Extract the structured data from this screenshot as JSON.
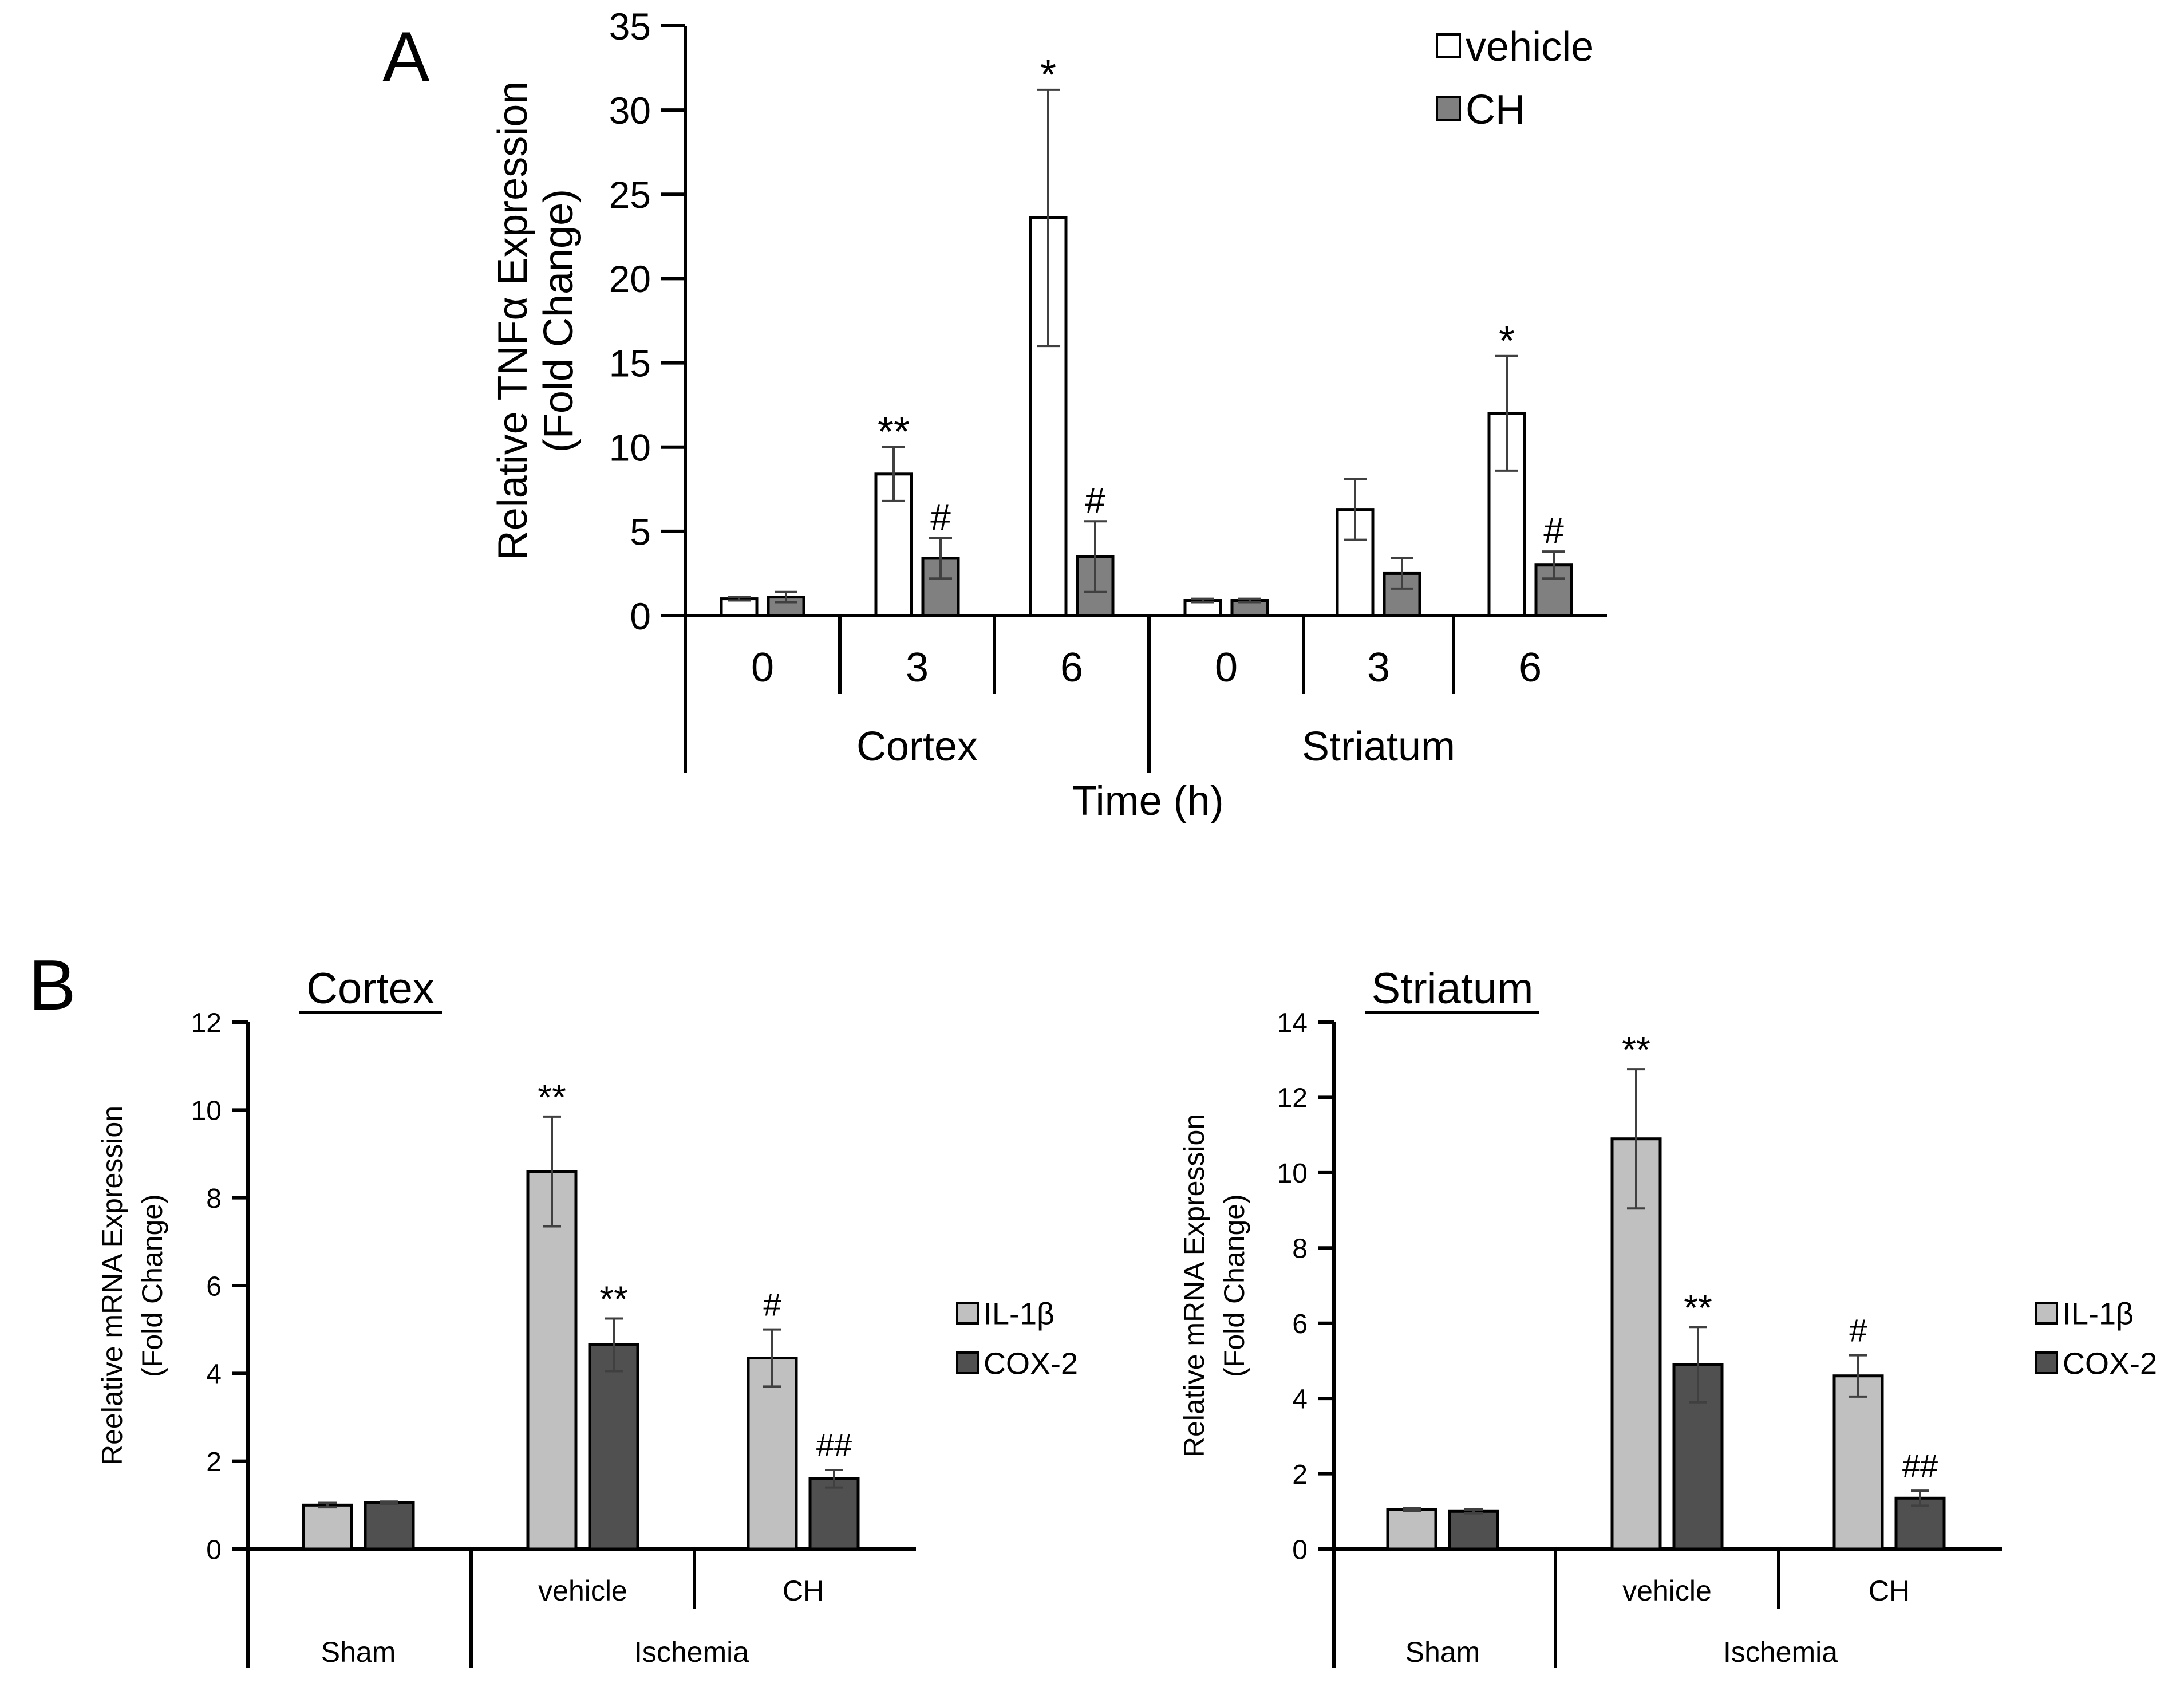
{
  "panel_labels": {
    "a": "A",
    "b": "B"
  },
  "colors": {
    "vehicle_fill": "#ffffff",
    "ch_fill": "#808080",
    "il1b_fill": "#c0c0c0",
    "cox2_fill": "#505050",
    "ink": "#000000",
    "errorbar": "#404040"
  },
  "chart_data": [
    {
      "id": "panel-a",
      "type": "bar",
      "title": "",
      "ylabel": "Relative TNFα Expression (Fold Change)",
      "ylabel_lines": [
        "Relative TNFα Expression",
        "(Fold Change)"
      ],
      "xlabel": "Time (h)",
      "ylim": [
        0,
        35
      ],
      "yticks": [
        0,
        5,
        10,
        15,
        20,
        25,
        30,
        35
      ],
      "groups": [
        "Cortex",
        "Striatum"
      ],
      "categories": [
        "0",
        "3",
        "6",
        "0",
        "3",
        "6"
      ],
      "legend": [
        "vehicle",
        "CH"
      ],
      "series": [
        {
          "name": "vehicle",
          "values": [
            1.0,
            8.4,
            23.6,
            0.9,
            6.3,
            12.0
          ],
          "errors": [
            0.1,
            1.6,
            7.6,
            0.1,
            1.8,
            3.4
          ],
          "annotations": [
            "",
            "**",
            "*",
            "",
            "",
            "*"
          ]
        },
        {
          "name": "CH",
          "values": [
            1.1,
            3.4,
            3.5,
            0.9,
            2.5,
            3.0
          ],
          "errors": [
            0.3,
            1.2,
            2.1,
            0.1,
            0.9,
            0.8
          ],
          "annotations": [
            "",
            "#",
            "#",
            "",
            "",
            "#"
          ]
        }
      ]
    },
    {
      "id": "panel-b-cortex",
      "type": "bar",
      "title": "Cortex",
      "ylabel": "Reelative mRNA Expression (Fold Change)",
      "ylabel_lines": [
        "Reelative mRNA Expression",
        "(Fold Change)"
      ],
      "ylim": [
        0,
        12
      ],
      "yticks": [
        0,
        2,
        4,
        6,
        8,
        10,
        12
      ],
      "categories": [
        "",
        "vehicle",
        "CH"
      ],
      "groups": [
        "Sham",
        "Ischemia"
      ],
      "legend": [
        "IL-1β",
        "COX-2"
      ],
      "series": [
        {
          "name": "IL-1β",
          "values": [
            1.0,
            8.6,
            4.35
          ],
          "errors": [
            0.05,
            1.25,
            0.65
          ],
          "annotations": [
            "",
            "**",
            "#"
          ]
        },
        {
          "name": "COX-2",
          "values": [
            1.05,
            4.65,
            1.6
          ],
          "errors": [
            0.03,
            0.6,
            0.2
          ],
          "annotations": [
            "",
            "**",
            "##"
          ]
        }
      ]
    },
    {
      "id": "panel-b-striatum",
      "type": "bar",
      "title": "Striatum",
      "ylabel": "Relative mRNA Expression (Fold Change)",
      "ylabel_lines": [
        "Relative mRNA Expression",
        "(Fold Change)"
      ],
      "ylim": [
        0,
        14
      ],
      "yticks": [
        0,
        2,
        4,
        6,
        8,
        10,
        12,
        14
      ],
      "categories": [
        "",
        "vehicle",
        "CH"
      ],
      "groups": [
        "Sham",
        "Ischemia"
      ],
      "legend": [
        "IL-1β",
        "COX-2"
      ],
      "series": [
        {
          "name": "IL-1β",
          "values": [
            1.05,
            10.9,
            4.6
          ],
          "errors": [
            0.03,
            1.85,
            0.55
          ],
          "annotations": [
            "",
            "**",
            "#"
          ]
        },
        {
          "name": "COX-2",
          "values": [
            1.0,
            4.9,
            1.35
          ],
          "errors": [
            0.05,
            1.0,
            0.2
          ],
          "annotations": [
            "",
            "**",
            "##"
          ]
        }
      ]
    }
  ]
}
